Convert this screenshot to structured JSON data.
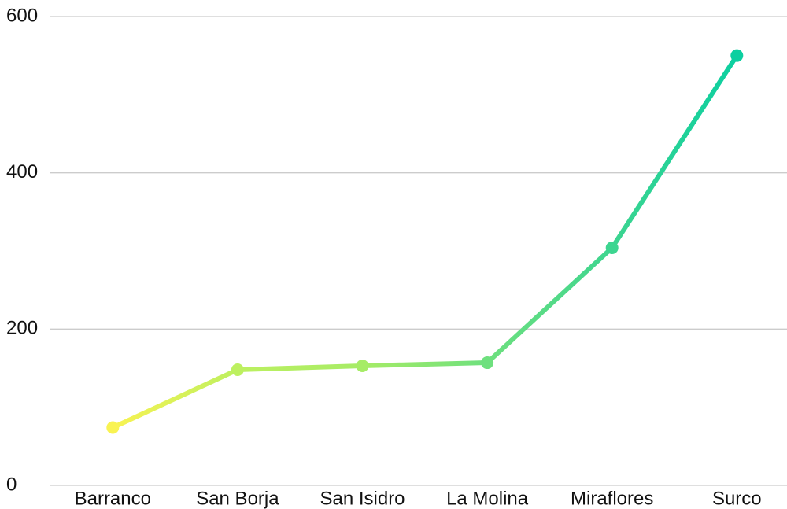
{
  "chart_data": {
    "type": "line",
    "categories": [
      "Barranco",
      "San Borja",
      "San Isidro",
      "La Molina",
      "Miraflores",
      "Surco"
    ],
    "values": [
      74,
      148,
      153,
      157,
      304,
      550
    ],
    "colors": [
      "#f9f352",
      "#bdf060",
      "#a6ec66",
      "#6ee07e",
      "#3dd590",
      "#0ccfa0"
    ],
    "ylim": [
      0,
      600
    ],
    "yticks": [
      0,
      200,
      400,
      600
    ],
    "grid": true
  }
}
